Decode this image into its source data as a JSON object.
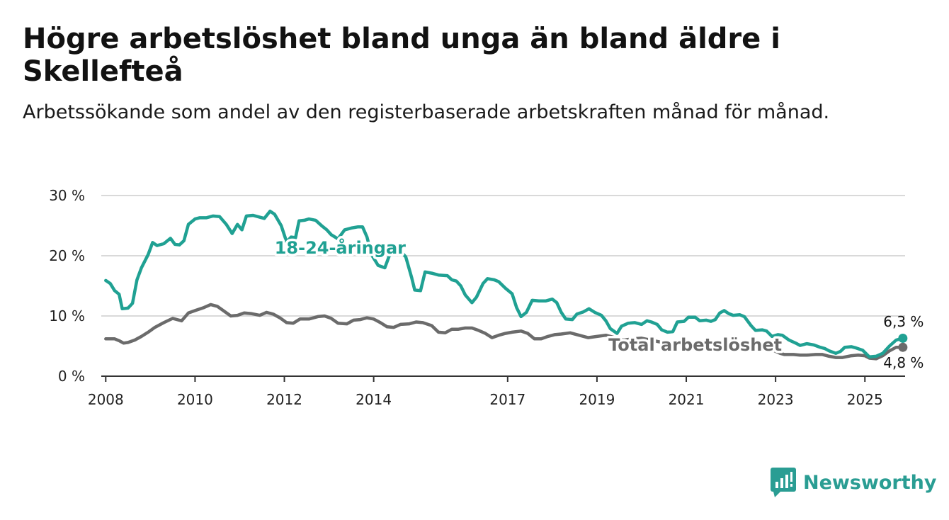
{
  "title": "Högre arbetslöshet bland unga än bland äldre i Skellefteå",
  "subtitle": "Arbetssökande som andel av den registerbaserade arbetskraften månad för månad.",
  "logo_text": "Newsworthy",
  "colors": {
    "youth": "#20a193",
    "total": "#6b6b6b",
    "grid": "#d9d9d9",
    "axis": "#333333",
    "logo": "#2a9d93"
  },
  "chart_data": {
    "type": "line",
    "title": "Högre arbetslöshet bland unga än bland äldre i Skellefteå",
    "subtitle": "Arbetssökande som andel av den registerbaserade arbetskraften månad för månad.",
    "xlabel": "",
    "ylabel": "",
    "ylim": [
      0,
      30
    ],
    "xlim": [
      2007.9,
      2025.9
    ],
    "y_ticks": [
      0,
      10,
      20,
      30
    ],
    "y_tick_labels": [
      "0 %",
      "10 %",
      "20 %",
      "30 %"
    ],
    "x_ticks": [
      2008,
      2010,
      2012,
      2014,
      2017,
      2019,
      2021,
      2023,
      2025
    ],
    "x_tick_labels": [
      "2008",
      "2010",
      "2012",
      "2014",
      "2017",
      "2019",
      "2021",
      "2023",
      "2025"
    ],
    "grid": true,
    "legend": "none",
    "series": [
      {
        "name": "18-24-åringar",
        "color": "#20a193",
        "end_label": "6,3 %",
        "points": [
          [
            2008.0,
            15.9
          ],
          [
            2008.1,
            15.4
          ],
          [
            2008.2,
            14.2
          ],
          [
            2008.3,
            13.6
          ],
          [
            2008.37,
            11.2
          ],
          [
            2008.5,
            11.3
          ],
          [
            2008.6,
            12.1
          ],
          [
            2008.7,
            16.0
          ],
          [
            2008.8,
            18.0
          ],
          [
            2008.95,
            20.2
          ],
          [
            2009.05,
            22.2
          ],
          [
            2009.15,
            21.7
          ],
          [
            2009.3,
            22.0
          ],
          [
            2009.45,
            22.9
          ],
          [
            2009.55,
            21.9
          ],
          [
            2009.65,
            21.8
          ],
          [
            2009.75,
            22.5
          ],
          [
            2009.85,
            25.2
          ],
          [
            2010.0,
            26.1
          ],
          [
            2010.1,
            26.3
          ],
          [
            2010.25,
            26.3
          ],
          [
            2010.4,
            26.6
          ],
          [
            2010.55,
            26.5
          ],
          [
            2010.7,
            25.2
          ],
          [
            2010.83,
            23.7
          ],
          [
            2010.95,
            25.2
          ],
          [
            2011.05,
            24.3
          ],
          [
            2011.15,
            26.6
          ],
          [
            2011.3,
            26.7
          ],
          [
            2011.45,
            26.4
          ],
          [
            2011.55,
            26.2
          ],
          [
            2011.68,
            27.4
          ],
          [
            2011.78,
            26.9
          ],
          [
            2011.93,
            25.0
          ],
          [
            2012.05,
            22.3
          ],
          [
            2012.15,
            23.1
          ],
          [
            2012.25,
            23.0
          ],
          [
            2012.33,
            25.8
          ],
          [
            2012.45,
            25.9
          ],
          [
            2012.55,
            26.1
          ],
          [
            2012.7,
            25.9
          ],
          [
            2012.85,
            24.9
          ],
          [
            2012.95,
            24.3
          ],
          [
            2013.05,
            23.5
          ],
          [
            2013.2,
            22.8
          ],
          [
            2013.35,
            24.3
          ],
          [
            2013.5,
            24.6
          ],
          [
            2013.65,
            24.8
          ],
          [
            2013.75,
            24.8
          ],
          [
            2013.85,
            23.1
          ],
          [
            2013.95,
            20.2
          ],
          [
            2014.1,
            18.4
          ],
          [
            2014.25,
            18.0
          ],
          [
            2014.35,
            20.0
          ],
          [
            2014.5,
            20.9
          ],
          [
            2014.6,
            20.8
          ],
          [
            2014.72,
            19.8
          ],
          [
            2014.85,
            16.4
          ],
          [
            2014.92,
            14.3
          ],
          [
            2015.05,
            14.2
          ],
          [
            2015.15,
            17.3
          ],
          [
            2015.3,
            17.1
          ],
          [
            2015.45,
            16.8
          ],
          [
            2015.65,
            16.7
          ],
          [
            2015.75,
            16.0
          ],
          [
            2015.85,
            15.8
          ],
          [
            2015.95,
            15.0
          ],
          [
            2016.05,
            13.5
          ],
          [
            2016.2,
            12.2
          ],
          [
            2016.3,
            13.1
          ],
          [
            2016.45,
            15.4
          ],
          [
            2016.55,
            16.2
          ],
          [
            2016.7,
            16.0
          ],
          [
            2016.8,
            15.7
          ],
          [
            2016.95,
            14.6
          ],
          [
            2017.1,
            13.7
          ],
          [
            2017.2,
            11.4
          ],
          [
            2017.3,
            9.9
          ],
          [
            2017.42,
            10.6
          ],
          [
            2017.55,
            12.6
          ],
          [
            2017.7,
            12.5
          ],
          [
            2017.85,
            12.5
          ],
          [
            2018.0,
            12.8
          ],
          [
            2018.1,
            12.2
          ],
          [
            2018.2,
            10.6
          ],
          [
            2018.3,
            9.5
          ],
          [
            2018.45,
            9.4
          ],
          [
            2018.55,
            10.3
          ],
          [
            2018.7,
            10.7
          ],
          [
            2018.82,
            11.2
          ],
          [
            2018.95,
            10.6
          ],
          [
            2019.1,
            10.1
          ],
          [
            2019.2,
            9.2
          ],
          [
            2019.3,
            7.9
          ],
          [
            2019.45,
            7.1
          ],
          [
            2019.55,
            8.3
          ],
          [
            2019.7,
            8.8
          ],
          [
            2019.85,
            8.9
          ],
          [
            2020.0,
            8.6
          ],
          [
            2020.12,
            9.2
          ],
          [
            2020.22,
            9.0
          ],
          [
            2020.35,
            8.6
          ],
          [
            2020.45,
            7.7
          ],
          [
            2020.58,
            7.3
          ],
          [
            2020.7,
            7.4
          ],
          [
            2020.8,
            9.0
          ],
          [
            2020.95,
            9.1
          ],
          [
            2021.05,
            9.8
          ],
          [
            2021.2,
            9.8
          ],
          [
            2021.3,
            9.2
          ],
          [
            2021.45,
            9.3
          ],
          [
            2021.55,
            9.1
          ],
          [
            2021.65,
            9.4
          ],
          [
            2021.75,
            10.5
          ],
          [
            2021.85,
            10.9
          ],
          [
            2021.95,
            10.4
          ],
          [
            2022.05,
            10.1
          ],
          [
            2022.2,
            10.2
          ],
          [
            2022.3,
            9.9
          ],
          [
            2022.45,
            8.4
          ],
          [
            2022.55,
            7.6
          ],
          [
            2022.7,
            7.7
          ],
          [
            2022.8,
            7.5
          ],
          [
            2022.92,
            6.6
          ],
          [
            2023.05,
            6.9
          ],
          [
            2023.15,
            6.8
          ],
          [
            2023.3,
            6.0
          ],
          [
            2023.45,
            5.5
          ],
          [
            2023.55,
            5.1
          ],
          [
            2023.7,
            5.4
          ],
          [
            2023.85,
            5.2
          ],
          [
            2024.0,
            4.8
          ],
          [
            2024.1,
            4.6
          ],
          [
            2024.2,
            4.2
          ],
          [
            2024.35,
            3.8
          ],
          [
            2024.45,
            4.1
          ],
          [
            2024.55,
            4.8
          ],
          [
            2024.7,
            4.9
          ],
          [
            2024.8,
            4.7
          ],
          [
            2024.95,
            4.3
          ],
          [
            2025.1,
            3.2
          ],
          [
            2025.25,
            3.3
          ],
          [
            2025.4,
            3.8
          ],
          [
            2025.55,
            5.0
          ],
          [
            2025.7,
            6.0
          ],
          [
            2025.85,
            6.3
          ]
        ]
      },
      {
        "name": "Total arbetslöshet",
        "color": "#6b6b6b",
        "end_label": "4,8 %",
        "points": [
          [
            2008.0,
            6.2
          ],
          [
            2008.2,
            6.2
          ],
          [
            2008.3,
            5.9
          ],
          [
            2008.4,
            5.5
          ],
          [
            2008.5,
            5.6
          ],
          [
            2008.65,
            6.0
          ],
          [
            2008.8,
            6.6
          ],
          [
            2008.95,
            7.3
          ],
          [
            2009.1,
            8.1
          ],
          [
            2009.3,
            8.9
          ],
          [
            2009.5,
            9.6
          ],
          [
            2009.7,
            9.2
          ],
          [
            2009.85,
            10.5
          ],
          [
            2010.0,
            10.9
          ],
          [
            2010.2,
            11.4
          ],
          [
            2010.35,
            11.9
          ],
          [
            2010.5,
            11.6
          ],
          [
            2010.65,
            10.8
          ],
          [
            2010.8,
            10.0
          ],
          [
            2010.95,
            10.1
          ],
          [
            2011.1,
            10.5
          ],
          [
            2011.25,
            10.4
          ],
          [
            2011.45,
            10.1
          ],
          [
            2011.6,
            10.6
          ],
          [
            2011.75,
            10.3
          ],
          [
            2011.9,
            9.7
          ],
          [
            2012.05,
            8.9
          ],
          [
            2012.2,
            8.8
          ],
          [
            2012.35,
            9.5
          ],
          [
            2012.55,
            9.5
          ],
          [
            2012.75,
            9.9
          ],
          [
            2012.9,
            10.0
          ],
          [
            2013.05,
            9.6
          ],
          [
            2013.2,
            8.8
          ],
          [
            2013.4,
            8.7
          ],
          [
            2013.55,
            9.3
          ],
          [
            2013.7,
            9.4
          ],
          [
            2013.85,
            9.7
          ],
          [
            2014.0,
            9.5
          ],
          [
            2014.15,
            8.9
          ],
          [
            2014.3,
            8.2
          ],
          [
            2014.45,
            8.1
          ],
          [
            2014.6,
            8.6
          ],
          [
            2014.8,
            8.7
          ],
          [
            2014.95,
            9.0
          ],
          [
            2015.1,
            8.9
          ],
          [
            2015.3,
            8.4
          ],
          [
            2015.45,
            7.3
          ],
          [
            2015.6,
            7.2
          ],
          [
            2015.75,
            7.8
          ],
          [
            2015.9,
            7.8
          ],
          [
            2016.05,
            8.0
          ],
          [
            2016.2,
            8.0
          ],
          [
            2016.35,
            7.6
          ],
          [
            2016.5,
            7.1
          ],
          [
            2016.65,
            6.4
          ],
          [
            2016.8,
            6.8
          ],
          [
            2016.95,
            7.1
          ],
          [
            2017.1,
            7.3
          ],
          [
            2017.3,
            7.5
          ],
          [
            2017.45,
            7.1
          ],
          [
            2017.6,
            6.2
          ],
          [
            2017.75,
            6.2
          ],
          [
            2017.9,
            6.6
          ],
          [
            2018.05,
            6.9
          ],
          [
            2018.2,
            7.0
          ],
          [
            2018.4,
            7.2
          ],
          [
            2018.6,
            6.8
          ],
          [
            2018.8,
            6.4
          ],
          [
            2019.0,
            6.6
          ],
          [
            2019.2,
            6.8
          ],
          [
            2019.4,
            6.4
          ],
          [
            2019.6,
            6.0
          ],
          [
            2019.8,
            6.2
          ],
          [
            2020.0,
            6.3
          ],
          [
            2020.2,
            6.0
          ],
          [
            2020.4,
            5.7
          ],
          [
            2020.6,
            5.6
          ],
          [
            2020.8,
            5.5
          ],
          [
            2021.0,
            5.4
          ],
          [
            2021.2,
            5.3
          ],
          [
            2021.4,
            5.2
          ],
          [
            2021.6,
            5.1
          ],
          [
            2021.8,
            5.0
          ],
          [
            2022.0,
            4.9
          ],
          [
            2022.2,
            4.8
          ],
          [
            2022.4,
            4.6
          ],
          [
            2022.6,
            4.5
          ],
          [
            2022.8,
            4.4
          ],
          [
            2022.95,
            4.3
          ],
          [
            2023.1,
            3.8
          ],
          [
            2023.2,
            3.6
          ],
          [
            2023.4,
            3.6
          ],
          [
            2023.55,
            3.5
          ],
          [
            2023.7,
            3.5
          ],
          [
            2023.9,
            3.6
          ],
          [
            2024.05,
            3.6
          ],
          [
            2024.2,
            3.3
          ],
          [
            2024.35,
            3.1
          ],
          [
            2024.5,
            3.1
          ],
          [
            2024.7,
            3.4
          ],
          [
            2024.85,
            3.5
          ],
          [
            2025.0,
            3.4
          ],
          [
            2025.1,
            3.0
          ],
          [
            2025.25,
            2.9
          ],
          [
            2025.4,
            3.4
          ],
          [
            2025.55,
            4.2
          ],
          [
            2025.7,
            4.8
          ],
          [
            2025.85,
            4.8
          ]
        ]
      }
    ]
  }
}
